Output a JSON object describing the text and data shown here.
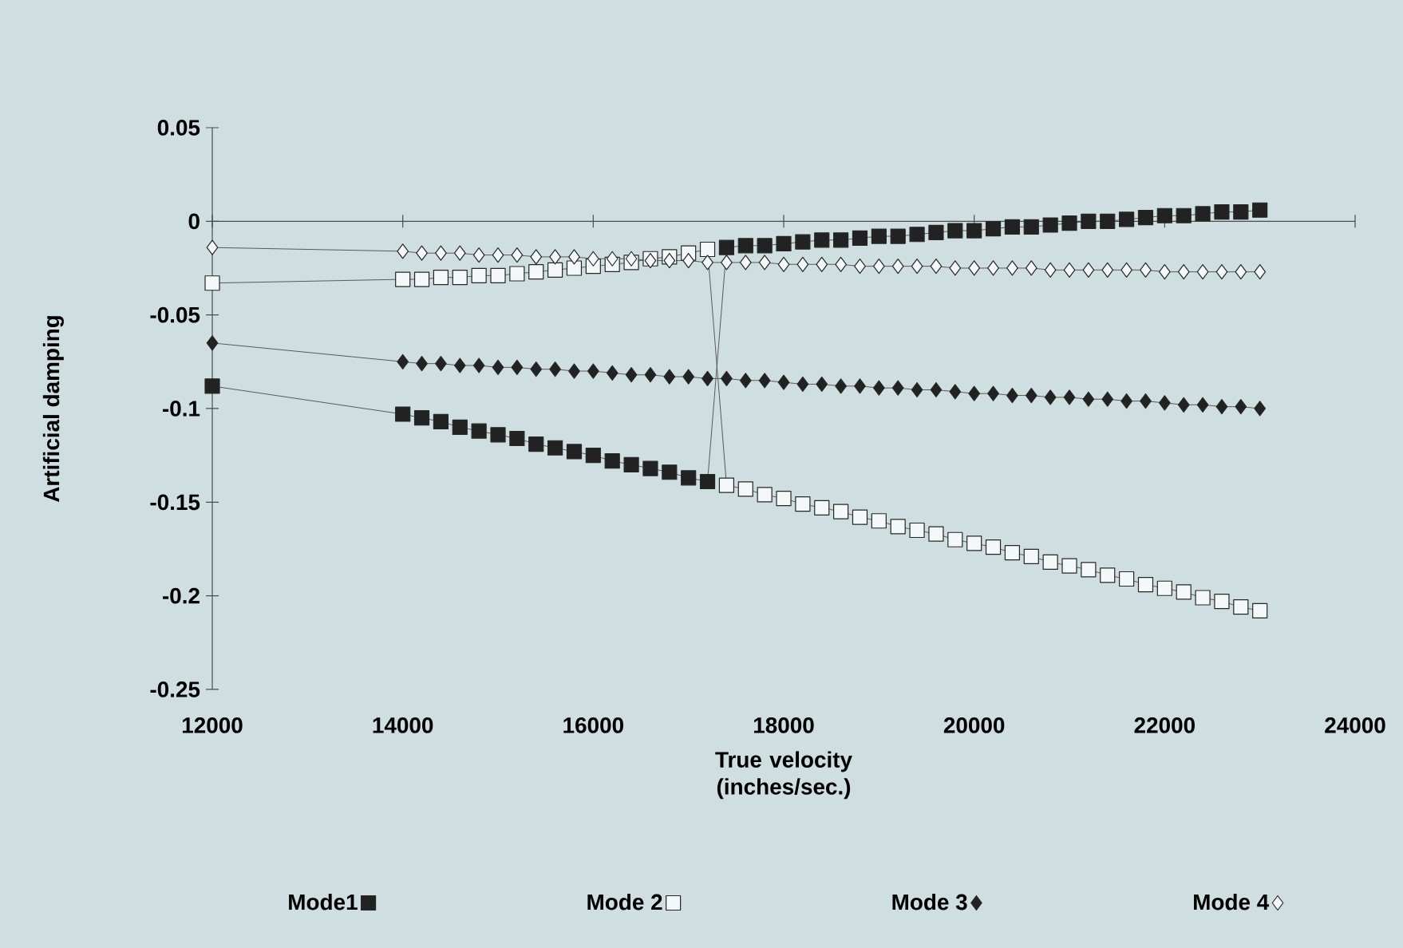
{
  "chart_data": {
    "type": "line",
    "xlabel": "True velocity (inches/sec.)",
    "ylabel": "Artificial damping",
    "x": [
      12000,
      14000,
      14200,
      14400,
      14600,
      14800,
      15000,
      15200,
      15400,
      15600,
      15800,
      16000,
      16200,
      16400,
      16600,
      16800,
      17000,
      17200,
      17400,
      17600,
      17800,
      18000,
      18200,
      18400,
      18600,
      18800,
      19000,
      19200,
      19400,
      19600,
      19800,
      20000,
      20200,
      20400,
      20600,
      20800,
      21000,
      21200,
      21400,
      21600,
      21800,
      22000,
      22200,
      22400,
      22600,
      22800,
      23000
    ],
    "series": [
      {
        "name": "Mode1",
        "color": "#222222",
        "marker": "square",
        "values": [
          -0.088,
          -0.103,
          -0.105,
          -0.107,
          -0.11,
          -0.112,
          -0.114,
          -0.116,
          -0.119,
          -0.121,
          -0.123,
          -0.125,
          -0.128,
          -0.13,
          -0.132,
          -0.134,
          -0.137,
          -0.139,
          -0.014,
          -0.013,
          -0.013,
          -0.012,
          -0.011,
          -0.01,
          -0.01,
          -0.009,
          -0.008,
          -0.008,
          -0.007,
          -0.006,
          -0.005,
          -0.005,
          -0.004,
          -0.003,
          -0.003,
          -0.002,
          -0.001,
          0.0,
          0.0,
          0.001,
          0.002,
          0.003,
          0.003,
          0.004,
          0.005,
          0.005,
          0.006
        ]
      },
      {
        "name": "Mode 2",
        "color": "#f4f8f8",
        "marker": "square",
        "values": [
          -0.033,
          -0.031,
          -0.031,
          -0.03,
          -0.03,
          -0.029,
          -0.029,
          -0.028,
          -0.027,
          -0.026,
          -0.025,
          -0.024,
          -0.023,
          -0.022,
          -0.02,
          -0.019,
          -0.017,
          -0.015,
          -0.141,
          -0.143,
          -0.146,
          -0.148,
          -0.151,
          -0.153,
          -0.155,
          -0.158,
          -0.16,
          -0.163,
          -0.165,
          -0.167,
          -0.17,
          -0.172,
          -0.174,
          -0.177,
          -0.179,
          -0.182,
          -0.184,
          -0.186,
          -0.189,
          -0.191,
          -0.194,
          -0.196,
          -0.198,
          -0.201,
          -0.203,
          -0.206,
          -0.208
        ]
      },
      {
        "name": "Mode 3",
        "color": "#222222",
        "marker": "diamond",
        "values": [
          -0.065,
          -0.075,
          -0.076,
          -0.076,
          -0.077,
          -0.077,
          -0.078,
          -0.078,
          -0.079,
          -0.079,
          -0.08,
          -0.08,
          -0.081,
          -0.082,
          -0.082,
          -0.083,
          -0.083,
          -0.084,
          -0.084,
          -0.085,
          -0.085,
          -0.086,
          -0.087,
          -0.087,
          -0.088,
          -0.088,
          -0.089,
          -0.089,
          -0.09,
          -0.09,
          -0.091,
          -0.092,
          -0.092,
          -0.093,
          -0.093,
          -0.094,
          -0.094,
          -0.095,
          -0.095,
          -0.096,
          -0.096,
          -0.097,
          -0.098,
          -0.098,
          -0.099,
          -0.099,
          -0.1
        ]
      },
      {
        "name": "Mode 4",
        "color": "#f4f8f8",
        "marker": "diamond",
        "values": [
          -0.014,
          -0.016,
          -0.017,
          -0.017,
          -0.017,
          -0.018,
          -0.018,
          -0.018,
          -0.019,
          -0.019,
          -0.019,
          -0.02,
          -0.02,
          -0.02,
          -0.021,
          -0.021,
          -0.021,
          -0.022,
          -0.022,
          -0.022,
          -0.022,
          -0.023,
          -0.023,
          -0.023,
          -0.023,
          -0.024,
          -0.024,
          -0.024,
          -0.024,
          -0.024,
          -0.025,
          -0.025,
          -0.025,
          -0.025,
          -0.025,
          -0.026,
          -0.026,
          -0.026,
          -0.026,
          -0.026,
          -0.026,
          -0.027,
          -0.027,
          -0.027,
          -0.027,
          -0.027,
          -0.027
        ]
      }
    ],
    "xlim": [
      12000,
      24000
    ],
    "xticks": [
      12000,
      14000,
      16000,
      18000,
      20000,
      22000,
      24000
    ],
    "ylim": [
      -0.25,
      0.05
    ],
    "yticks": [
      -0.25,
      -0.2,
      -0.15,
      -0.1,
      -0.05,
      0,
      0.05
    ],
    "legend": "bottom",
    "line_style": "solid"
  }
}
